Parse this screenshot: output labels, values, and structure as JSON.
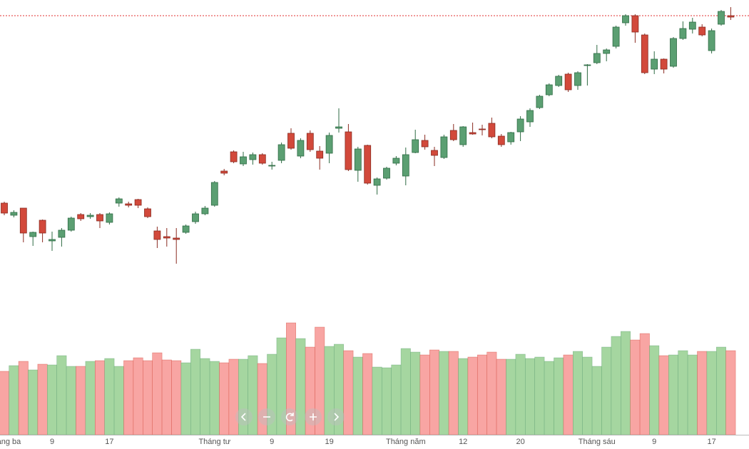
{
  "chart_data": {
    "type": "candlestick",
    "categories": [
      "Tháng ba",
      null,
      null,
      null,
      null,
      "9",
      null,
      null,
      null,
      null,
      null,
      "17",
      null,
      null,
      null,
      null,
      null,
      null,
      null,
      null,
      null,
      null,
      "Tháng tư",
      null,
      null,
      null,
      null,
      null,
      "9",
      null,
      null,
      null,
      null,
      null,
      "19",
      null,
      null,
      null,
      null,
      null,
      null,
      null,
      "Tháng năm",
      null,
      null,
      null,
      null,
      null,
      "12",
      null,
      null,
      null,
      null,
      null,
      "20",
      null,
      null,
      null,
      null,
      null,
      null,
      null,
      "Tháng sáu",
      null,
      null,
      null,
      null,
      null,
      "9",
      null,
      null,
      null,
      null,
      null,
      "17",
      null,
      null
    ],
    "open": [
      345,
      328,
      338,
      298,
      321,
      292,
      297,
      307,
      329,
      326,
      329,
      318,
      345,
      344,
      350,
      337,
      306,
      298,
      296,
      304,
      319,
      330,
      342,
      390,
      417,
      400,
      406,
      413,
      397,
      405,
      443,
      411,
      443,
      418,
      415,
      450,
      445,
      391,
      426,
      370,
      380,
      401,
      383,
      416,
      433,
      419,
      409,
      447,
      427,
      444,
      449,
      457,
      439,
      431,
      445,
      459,
      479,
      497,
      510,
      526,
      510,
      538,
      542,
      555,
      565,
      598,
      608,
      581,
      533,
      547,
      537,
      576,
      589,
      592,
      559,
      596,
      608
    ],
    "high": [
      347,
      335,
      338,
      305,
      322,
      305,
      310,
      326,
      331,
      331,
      331,
      332,
      353,
      347,
      351,
      339,
      312,
      310,
      310,
      315,
      333,
      341,
      376,
      393,
      419,
      417,
      416,
      415,
      403,
      430,
      450,
      436,
      447,
      425,
      444,
      478,
      456,
      424,
      427,
      381,
      396,
      411,
      423,
      448,
      441,
      424,
      441,
      456,
      453,
      458,
      455,
      465,
      442,
      445,
      467,
      478,
      497,
      513,
      525,
      528,
      530,
      540,
      567,
      562,
      594,
      610,
      610,
      583,
      558,
      548,
      578,
      600,
      605,
      596,
      590,
      616,
      620
    ],
    "low": [
      328,
      325,
      290,
      285,
      290,
      278,
      284,
      305,
      320,
      323,
      310,
      315,
      340,
      339,
      338,
      324,
      282,
      284,
      260,
      302,
      316,
      328,
      340,
      384,
      401,
      397,
      399,
      399,
      392,
      401,
      420,
      408,
      417,
      392,
      401,
      444,
      390,
      375,
      371,
      357,
      378,
      398,
      370,
      415,
      420,
      397,
      407,
      432,
      424,
      441,
      440,
      436,
      424,
      427,
      432,
      452,
      477,
      495,
      508,
      501,
      504,
      510,
      540,
      544,
      562,
      594,
      570,
      526,
      526,
      527,
      535,
      574,
      583,
      579,
      555,
      594,
      602
    ],
    "close": [
      331,
      332,
      303,
      304,
      303,
      294,
      307,
      324,
      323,
      328,
      320,
      330,
      351,
      342,
      342,
      326,
      294,
      296,
      294,
      313,
      330,
      338,
      374,
      387,
      403,
      410,
      413,
      401,
      398,
      427,
      422,
      433,
      420,
      408,
      440,
      452,
      392,
      421,
      373,
      379,
      394,
      408,
      413,
      434,
      424,
      412,
      438,
      434,
      452,
      442,
      448,
      438,
      427,
      444,
      463,
      475,
      495,
      511,
      523,
      504,
      528,
      539,
      555,
      560,
      592,
      608,
      585,
      528,
      547,
      533,
      576,
      590,
      599,
      581,
      587,
      614,
      606
    ],
    "volume": [
      89,
      97,
      103,
      91,
      99,
      98,
      111,
      96,
      96,
      103,
      104,
      107,
      96,
      104,
      108,
      104,
      115,
      105,
      104,
      101,
      120,
      107,
      103,
      101,
      106,
      106,
      111,
      100,
      113,
      136,
      157,
      135,
      123,
      151,
      124,
      127,
      118,
      109,
      114,
      95,
      94,
      98,
      121,
      116,
      112,
      119,
      117,
      117,
      107,
      109,
      112,
      116,
      106,
      106,
      113,
      107,
      109,
      103,
      108,
      112,
      117,
      109,
      96,
      123,
      138,
      145,
      133,
      142,
      125,
      111,
      112,
      118,
      112,
      117,
      117,
      123,
      118
    ],
    "ylim": [
      0,
      630
    ],
    "volume_lim": [
      0,
      200
    ],
    "up_color": "#5b9f72",
    "up_border": "#2f6b44",
    "down_color": "#d2493b",
    "down_border": "#8a2b21",
    "volume_up_color": "#a5d6a0",
    "volume_down_color": "#f8a5a3",
    "reference_line": {
      "value": 608,
      "color": "#e03030"
    }
  }
}
